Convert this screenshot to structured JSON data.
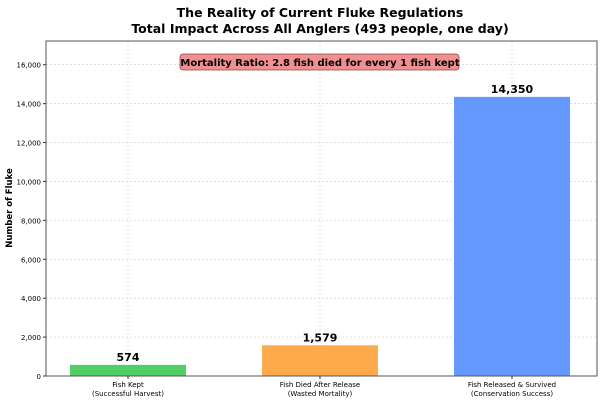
{
  "chart_data": {
    "type": "bar",
    "title": "The Reality of Current Fluke Regulations",
    "subtitle": "Total Impact Across All Anglers (493 people, one day)",
    "xlabel": "",
    "ylabel": "Number of Fluke",
    "categories": [
      "Fish Kept\n(Successful Harvest)",
      "Fish Died After Release\n(Wasted Mortality)",
      "Fish Released & Survived\n(Conservation Success)"
    ],
    "values": [
      574,
      1579,
      14350
    ],
    "value_labels": [
      "574",
      "1,579",
      "14,350"
    ],
    "colors": [
      "#51cf66",
      "#ffa94d",
      "#6699ff"
    ],
    "ylim": [
      0,
      17220
    ],
    "yticks": [
      0,
      2000,
      4000,
      6000,
      8000,
      10000,
      12000,
      14000,
      16000
    ],
    "ytick_labels": [
      "0",
      "2,000",
      "4,000",
      "6,000",
      "8,000",
      "10,000",
      "12,000",
      "14,000",
      "16,000"
    ],
    "grid": true,
    "annotation": {
      "text": "Mortality Ratio: 2.8 fish died for every 1 fish kept",
      "bg_color": "#f09090"
    }
  }
}
